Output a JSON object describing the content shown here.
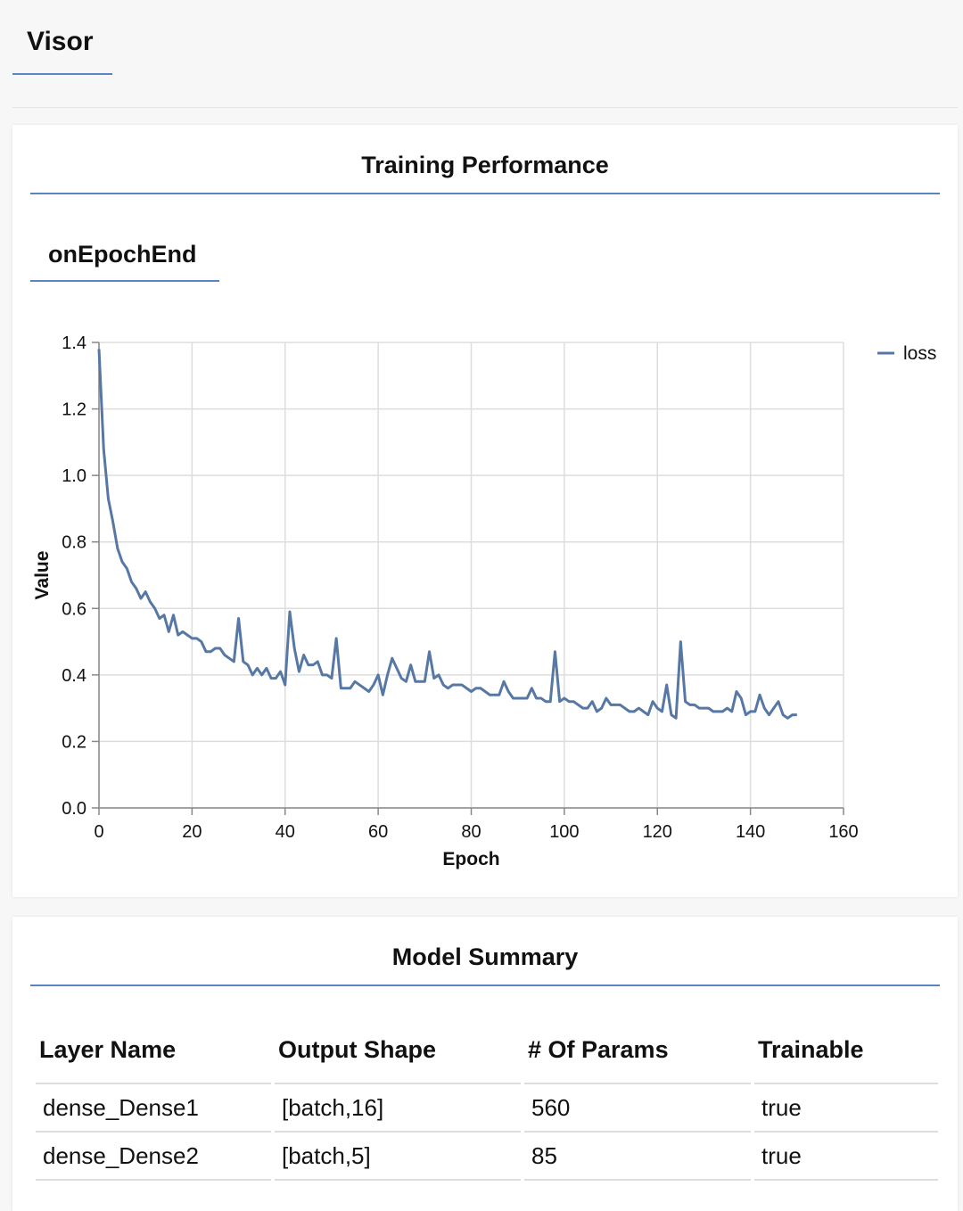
{
  "app": {
    "title": "Visor"
  },
  "training_performance": {
    "title": "Training Performance",
    "tab_label": "onEpochEnd"
  },
  "chart_data": {
    "type": "line",
    "xlabel": "Epoch",
    "ylabel": "Value",
    "xlim": [
      0,
      160
    ],
    "ylim": [
      0,
      1.4
    ],
    "x_ticks": [
      "0",
      "20",
      "40",
      "60",
      "80",
      "100",
      "120",
      "140",
      "160"
    ],
    "y_ticks": [
      "0.0",
      "0.2",
      "0.4",
      "0.6",
      "0.8",
      "1.0",
      "1.2",
      "1.4"
    ],
    "grid": true,
    "legend_position": "top-right",
    "series": [
      {
        "name": "loss",
        "color": "#5778a4",
        "values": [
          1.38,
          1.08,
          0.93,
          0.86,
          0.78,
          0.74,
          0.72,
          0.68,
          0.66,
          0.63,
          0.65,
          0.62,
          0.6,
          0.57,
          0.58,
          0.53,
          0.58,
          0.52,
          0.53,
          0.52,
          0.51,
          0.51,
          0.5,
          0.47,
          0.47,
          0.48,
          0.48,
          0.46,
          0.45,
          0.44,
          0.57,
          0.44,
          0.43,
          0.4,
          0.42,
          0.4,
          0.42,
          0.39,
          0.39,
          0.41,
          0.37,
          0.59,
          0.48,
          0.41,
          0.46,
          0.43,
          0.43,
          0.44,
          0.4,
          0.4,
          0.39,
          0.51,
          0.36,
          0.36,
          0.36,
          0.38,
          0.37,
          0.36,
          0.35,
          0.37,
          0.4,
          0.34,
          0.4,
          0.45,
          0.42,
          0.39,
          0.38,
          0.43,
          0.38,
          0.38,
          0.38,
          0.47,
          0.39,
          0.4,
          0.37,
          0.36,
          0.37,
          0.37,
          0.37,
          0.36,
          0.35,
          0.36,
          0.36,
          0.35,
          0.34,
          0.34,
          0.34,
          0.38,
          0.35,
          0.33,
          0.33,
          0.33,
          0.33,
          0.36,
          0.33,
          0.33,
          0.32,
          0.32,
          0.47,
          0.32,
          0.33,
          0.32,
          0.32,
          0.31,
          0.3,
          0.3,
          0.32,
          0.29,
          0.3,
          0.33,
          0.31,
          0.31,
          0.31,
          0.3,
          0.29,
          0.29,
          0.3,
          0.29,
          0.28,
          0.32,
          0.3,
          0.29,
          0.37,
          0.28,
          0.27,
          0.5,
          0.32,
          0.31,
          0.31,
          0.3,
          0.3,
          0.3,
          0.29,
          0.29,
          0.29,
          0.3,
          0.29,
          0.35,
          0.33,
          0.28,
          0.29,
          0.29,
          0.34,
          0.3,
          0.28,
          0.3,
          0.32,
          0.28,
          0.27,
          0.28,
          0.28
        ]
      }
    ]
  },
  "model_summary": {
    "title": "Model Summary",
    "columns": [
      "Layer Name",
      "Output Shape",
      "# Of Params",
      "Trainable"
    ],
    "rows": [
      [
        "dense_Dense1",
        "[batch,16]",
        "560",
        "true"
      ],
      [
        "dense_Dense2",
        "[batch,5]",
        "85",
        "true"
      ]
    ]
  }
}
